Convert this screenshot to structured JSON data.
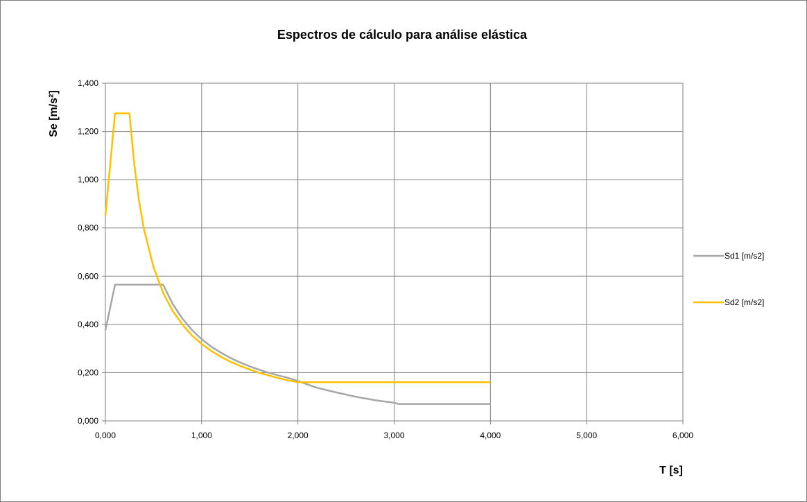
{
  "chart_data": {
    "type": "line",
    "title": "Espectros de cálculo para análise elástica",
    "xlabel": "T [s]",
    "ylabel": "Se [m/s²]",
    "xlim": [
      0,
      6
    ],
    "ylim": [
      0,
      1.4
    ],
    "x_ticks": [
      0,
      1,
      2,
      3,
      4,
      5,
      6
    ],
    "y_ticks": [
      0,
      0.2,
      0.4,
      0.6,
      0.8,
      1.0,
      1.2,
      1.4
    ],
    "x_tick_labels": [
      "0,000",
      "1,000",
      "2,000",
      "3,000",
      "4,000",
      "5,000",
      "6,000"
    ],
    "y_tick_labels": [
      "0,000",
      "0,200",
      "0,400",
      "0,600",
      "0,800",
      "1,000",
      "1,200",
      "1,400"
    ],
    "grid": true,
    "legend_position": "right",
    "series": [
      {
        "name": "Sd1 [m/s2]",
        "color": "#a6a6a6",
        "points": [
          [
            0.0,
            0.375
          ],
          [
            0.1,
            0.565
          ],
          [
            0.2,
            0.565
          ],
          [
            0.3,
            0.565
          ],
          [
            0.4,
            0.565
          ],
          [
            0.5,
            0.565
          ],
          [
            0.6,
            0.565
          ],
          [
            0.7,
            0.484
          ],
          [
            0.8,
            0.424
          ],
          [
            0.9,
            0.377
          ],
          [
            1.0,
            0.339
          ],
          [
            1.1,
            0.308
          ],
          [
            1.2,
            0.283
          ],
          [
            1.3,
            0.261
          ],
          [
            1.4,
            0.242
          ],
          [
            1.5,
            0.226
          ],
          [
            1.6,
            0.212
          ],
          [
            1.7,
            0.199
          ],
          [
            1.8,
            0.188
          ],
          [
            1.9,
            0.178
          ],
          [
            2.0,
            0.165
          ],
          [
            2.2,
            0.137
          ],
          [
            2.4,
            0.118
          ],
          [
            2.6,
            0.1
          ],
          [
            2.8,
            0.086
          ],
          [
            3.0,
            0.075
          ],
          [
            3.05,
            0.07
          ],
          [
            3.5,
            0.07
          ],
          [
            4.0,
            0.07
          ]
        ]
      },
      {
        "name": "Sd2 [m/s2]",
        "color": "#ffc000",
        "points": [
          [
            0.0,
            0.85
          ],
          [
            0.1,
            1.275
          ],
          [
            0.15,
            1.275
          ],
          [
            0.25,
            1.275
          ],
          [
            0.3,
            1.063
          ],
          [
            0.35,
            0.911
          ],
          [
            0.4,
            0.797
          ],
          [
            0.5,
            0.638
          ],
          [
            0.6,
            0.531
          ],
          [
            0.7,
            0.455
          ],
          [
            0.8,
            0.399
          ],
          [
            0.9,
            0.354
          ],
          [
            1.0,
            0.319
          ],
          [
            1.1,
            0.29
          ],
          [
            1.2,
            0.266
          ],
          [
            1.3,
            0.245
          ],
          [
            1.4,
            0.228
          ],
          [
            1.5,
            0.213
          ],
          [
            1.6,
            0.199
          ],
          [
            1.7,
            0.188
          ],
          [
            1.8,
            0.177
          ],
          [
            1.9,
            0.168
          ],
          [
            2.0,
            0.16
          ],
          [
            2.5,
            0.16
          ],
          [
            3.0,
            0.16
          ],
          [
            3.5,
            0.16
          ],
          [
            4.0,
            0.16
          ]
        ]
      }
    ]
  }
}
